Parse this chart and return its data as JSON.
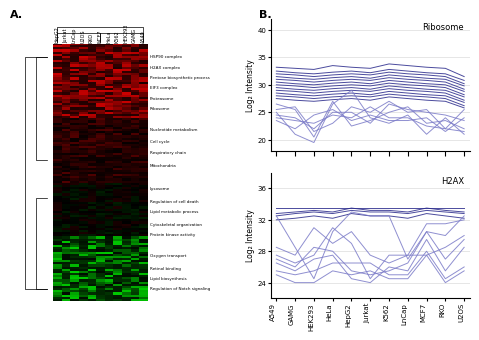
{
  "panel_A": {
    "label": "A.",
    "col_labels": [
      "HepG2",
      "Jurkat",
      "LnCap",
      "U2OS",
      "RKO",
      "MCF7",
      "HeLa",
      "K562",
      "HEK293",
      "GAMG",
      "A549"
    ]
  },
  "panel_B": {
    "label": "B.",
    "x_labels": [
      "A549",
      "GAMG",
      "HEK293",
      "HeLa",
      "HepG2",
      "Jurkat",
      "K562",
      "LnCap",
      "MCF7",
      "RKO",
      "U2OS"
    ],
    "ribosome": {
      "title": "Ribosome",
      "ylabel": "Log₂ Intensity",
      "ylim": [
        18,
        42
      ],
      "yticks": [
        20,
        25,
        30,
        35,
        40
      ],
      "line_color_dark": "#2B2B8C",
      "line_color_light": "#7B7BC8",
      "lines_dark": [
        [
          33.2,
          33.0,
          32.8,
          33.5,
          33.2,
          33.0,
          33.8,
          33.5,
          33.2,
          33.0,
          31.5
        ],
        [
          32.5,
          32.2,
          32.0,
          32.3,
          32.5,
          32.2,
          32.8,
          32.5,
          32.2,
          32.0,
          30.8
        ],
        [
          32.0,
          31.8,
          31.5,
          31.8,
          32.0,
          31.8,
          32.3,
          32.0,
          31.8,
          31.5,
          30.2
        ],
        [
          31.5,
          31.2,
          31.0,
          31.3,
          31.5,
          31.2,
          31.8,
          31.5,
          31.2,
          31.0,
          29.8
        ],
        [
          31.0,
          30.8,
          30.5,
          30.8,
          31.0,
          30.8,
          31.3,
          31.0,
          30.8,
          30.5,
          29.2
        ],
        [
          30.5,
          30.2,
          30.0,
          30.3,
          30.5,
          30.2,
          30.8,
          30.5,
          30.2,
          30.0,
          28.8
        ],
        [
          30.0,
          29.8,
          29.5,
          29.8,
          30.0,
          29.8,
          30.3,
          30.0,
          29.8,
          29.5,
          28.2
        ],
        [
          29.5,
          29.2,
          29.0,
          29.3,
          29.5,
          29.2,
          29.8,
          29.5,
          29.2,
          29.0,
          27.8
        ],
        [
          29.0,
          28.8,
          28.5,
          28.8,
          29.0,
          28.8,
          29.3,
          29.0,
          28.8,
          28.5,
          27.2
        ],
        [
          28.5,
          28.2,
          28.0,
          28.3,
          28.5,
          28.2,
          28.8,
          28.5,
          28.2,
          28.0,
          26.8
        ],
        [
          28.0,
          27.8,
          27.5,
          27.8,
          28.0,
          27.8,
          28.3,
          28.0,
          27.8,
          27.5,
          26.2
        ],
        [
          27.5,
          27.2,
          27.0,
          27.3,
          27.5,
          27.2,
          27.8,
          27.5,
          27.2,
          27.0,
          25.8
        ]
      ],
      "lines_light": [
        [
          25.0,
          21.0,
          19.5,
          26.5,
          29.0,
          24.0,
          23.0,
          24.5,
          21.0,
          24.0,
          21.0
        ],
        [
          24.5,
          24.0,
          22.0,
          25.0,
          25.0,
          23.0,
          26.5,
          25.5,
          25.0,
          24.5,
          23.5
        ],
        [
          26.5,
          25.5,
          20.5,
          27.0,
          22.5,
          23.5,
          25.0,
          26.0,
          23.0,
          23.5,
          22.0
        ],
        [
          24.0,
          23.5,
          23.0,
          24.5,
          24.0,
          26.0,
          24.0,
          24.0,
          22.5,
          22.0,
          21.5
        ],
        [
          23.5,
          22.0,
          24.5,
          25.5,
          23.5,
          24.5,
          23.5,
          23.5,
          24.0,
          21.5,
          24.0
        ],
        [
          25.5,
          26.0,
          21.5,
          23.0,
          26.0,
          25.0,
          27.0,
          25.0,
          25.5,
          22.0,
          25.5
        ]
      ]
    },
    "h2ax": {
      "title": "H2AX",
      "ylabel": "Log₂ Intensity",
      "ylim": [
        22,
        38
      ],
      "yticks": [
        24,
        28,
        32,
        36
      ],
      "line_color_dark": "#2B2B8C",
      "line_color_light": "#7B7BC8",
      "lines_dark": [
        [
          32.8,
          33.0,
          33.2,
          33.0,
          33.5,
          33.2,
          33.2,
          33.0,
          33.5,
          33.2,
          33.0
        ],
        [
          32.5,
          32.8,
          33.0,
          32.8,
          33.2,
          33.0,
          33.0,
          32.8,
          33.2,
          33.0,
          32.8
        ],
        [
          33.5,
          33.5,
          33.5,
          33.5,
          33.5,
          33.5,
          33.5,
          33.5,
          33.5,
          33.5,
          33.5
        ],
        [
          32.0,
          32.2,
          32.5,
          32.2,
          32.8,
          32.5,
          32.5,
          32.2,
          32.8,
          32.5,
          32.2
        ]
      ],
      "lines_light": [
        [
          32.5,
          28.5,
          24.5,
          30.5,
          33.0,
          32.5,
          32.5,
          27.0,
          30.5,
          30.0,
          32.5
        ],
        [
          27.5,
          26.5,
          27.5,
          31.0,
          29.0,
          24.5,
          27.5,
          27.5,
          27.5,
          28.5,
          30.0
        ],
        [
          28.5,
          27.5,
          31.0,
          29.0,
          30.5,
          27.5,
          26.5,
          27.5,
          31.5,
          31.5,
          32.0
        ],
        [
          27.0,
          26.0,
          28.5,
          28.0,
          25.5,
          25.0,
          25.5,
          26.5,
          30.5,
          27.0,
          29.5
        ],
        [
          26.5,
          25.5,
          27.0,
          27.5,
          24.5,
          24.0,
          26.0,
          25.5,
          29.5,
          25.5,
          28.5
        ],
        [
          25.5,
          25.0,
          25.5,
          26.5,
          26.5,
          26.5,
          25.0,
          25.0,
          28.0,
          24.5,
          26.0
        ],
        [
          25.0,
          24.0,
          24.0,
          25.5,
          25.0,
          25.5,
          24.5,
          24.5,
          27.5,
          24.0,
          25.5
        ]
      ]
    }
  },
  "row_annots": [
    [
      0.05,
      "HSP90 complex"
    ],
    [
      0.09,
      "H2AX complex"
    ],
    [
      0.13,
      "Pentose biosynthetic process"
    ],
    [
      0.17,
      "EIF3 complex"
    ],
    [
      0.21,
      "Proteasome"
    ],
    [
      0.25,
      "Ribosome"
    ],
    [
      0.33,
      "Nucleotide metabolism"
    ],
    [
      0.38,
      "Cell cycle"
    ],
    [
      0.42,
      "Respiratory chain"
    ],
    [
      0.47,
      "Mitochondria"
    ],
    [
      0.56,
      "Lysosome"
    ],
    [
      0.61,
      "Regulation of cell death"
    ],
    [
      0.65,
      "Lipid metabolic process"
    ],
    [
      0.7,
      "Cytoskeletal organization"
    ],
    [
      0.74,
      "Protein kinase activity"
    ],
    [
      0.82,
      "Oxygen transport"
    ],
    [
      0.87,
      "Retinol binding"
    ],
    [
      0.91,
      "Lipid biosynthesis"
    ],
    [
      0.95,
      "Regulation of Notch signaling"
    ]
  ],
  "bg_color": "#FFFFFF",
  "font_size": 5.5,
  "line_width": 0.7
}
